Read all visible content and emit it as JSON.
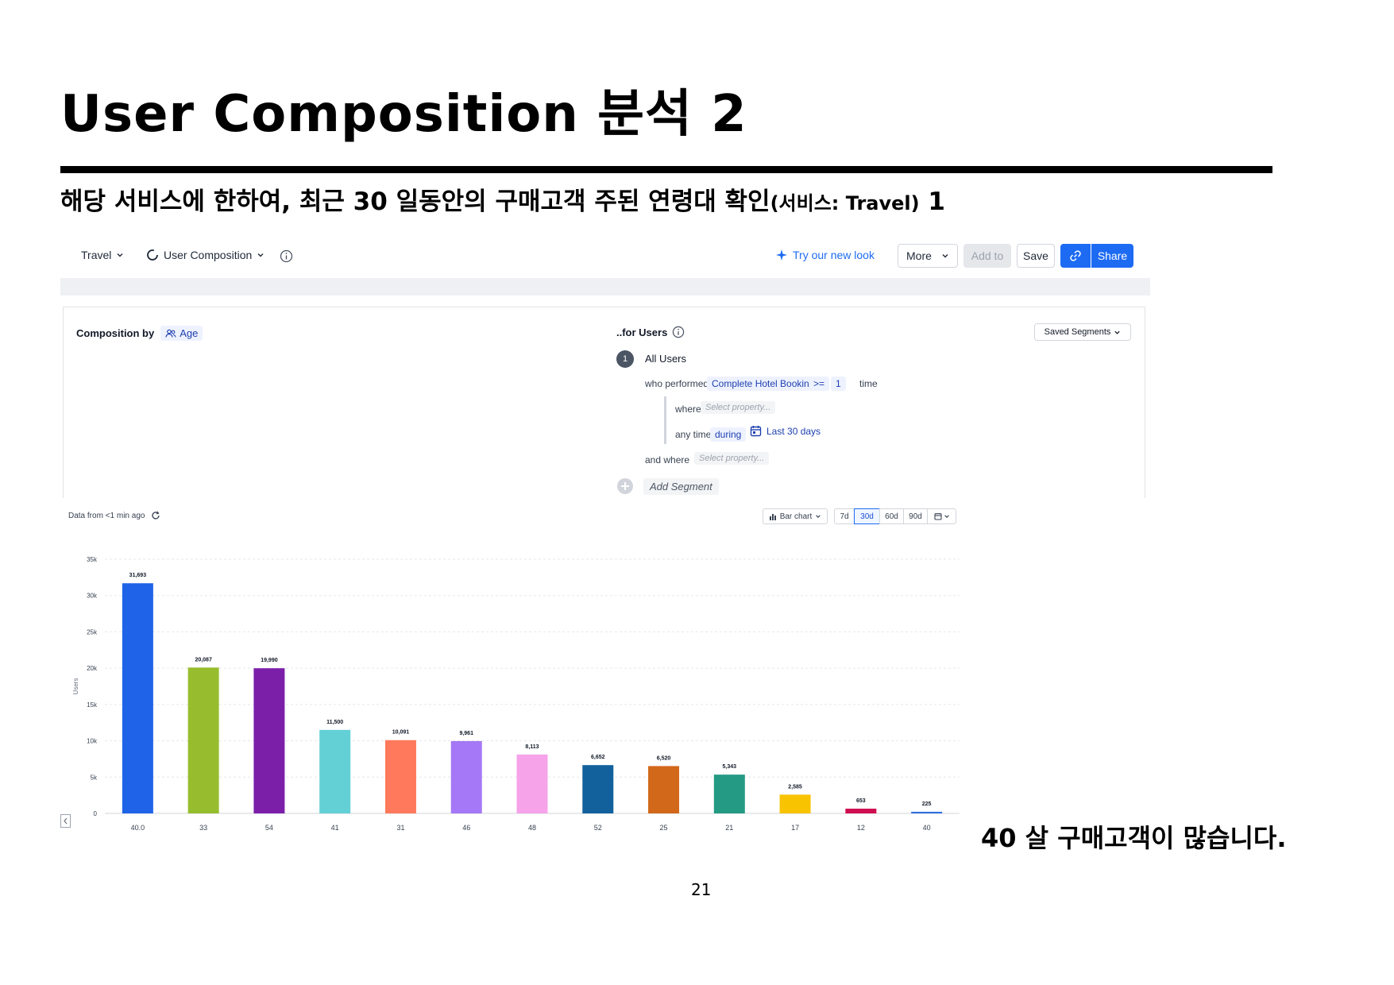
{
  "slide": {
    "title": "User Composition 분석  2",
    "subtitle_main": "해당 서비스에 한하여, 최근 30 일동안의 구매고객 주된 연령대 확인",
    "subtitle_small": "(서비스: Travel)",
    "subtitle_suffix": " 1",
    "conclusion": "40 살 구매고객이 많습니다.",
    "page_number": "21"
  },
  "toolbar": {
    "project": "Travel",
    "chart_name": "User Composition",
    "try_new_look": "Try our new look",
    "more": "More",
    "add_to": "Add to",
    "save": "Save",
    "share": "Share",
    "accent_color": "#1d6bf3"
  },
  "left_panel": {
    "composition_by_label": "Composition by",
    "property": "Age"
  },
  "right_panel": {
    "for_users_label": "..for Users",
    "saved_segments": "Saved Segments",
    "segment_number": "1",
    "segment_name": "All Users",
    "who_performed": "who performed",
    "event": "Complete Hotel Booking",
    "operator": ">=",
    "count": "1",
    "time_unit": "time",
    "where": "where",
    "select_property": "Select property...",
    "any_time": "any time",
    "during": "during",
    "date_range": "Last 30 days",
    "and_where": "and where",
    "select_property_2": "Select property...",
    "add_segment": "Add Segment"
  },
  "chart_controls": {
    "data_freshness": "Data from <1 min ago",
    "chart_type": "Bar chart",
    "ranges": [
      "7d",
      "30d",
      "60d",
      "90d"
    ],
    "selected_range": "30d"
  },
  "chart_data": {
    "type": "bar",
    "categories": [
      "40.0",
      "33",
      "54",
      "41",
      "31",
      "46",
      "48",
      "52",
      "25",
      "21",
      "17",
      "12",
      "40"
    ],
    "values": [
      31693,
      20087,
      19990,
      11500,
      10091,
      9961,
      8113,
      6652,
      6520,
      5343,
      2585,
      653,
      225
    ],
    "value_labels": [
      "31,693",
      "20,087",
      "19,990",
      "11,500",
      "10,091",
      "9,961",
      "8,113",
      "6,652",
      "6,520",
      "5,343",
      "2,585",
      "653",
      "225"
    ],
    "colors": [
      "#1f64e8",
      "#97bd2e",
      "#7b1fa9",
      "#63d0d6",
      "#ff7a5c",
      "#a478f6",
      "#f6a3ea",
      "#12619c",
      "#d2681a",
      "#249a84",
      "#f8c300",
      "#cf0e4f",
      "#2d6fe0"
    ],
    "ylabel": "Users",
    "ylim": [
      0,
      35000
    ],
    "yticks": [
      0,
      5000,
      10000,
      15000,
      20000,
      25000,
      30000,
      35000
    ],
    "ytick_labels": [
      "0",
      "5k",
      "10k",
      "15k",
      "20k",
      "25k",
      "30k",
      "35k"
    ],
    "grid": true
  }
}
